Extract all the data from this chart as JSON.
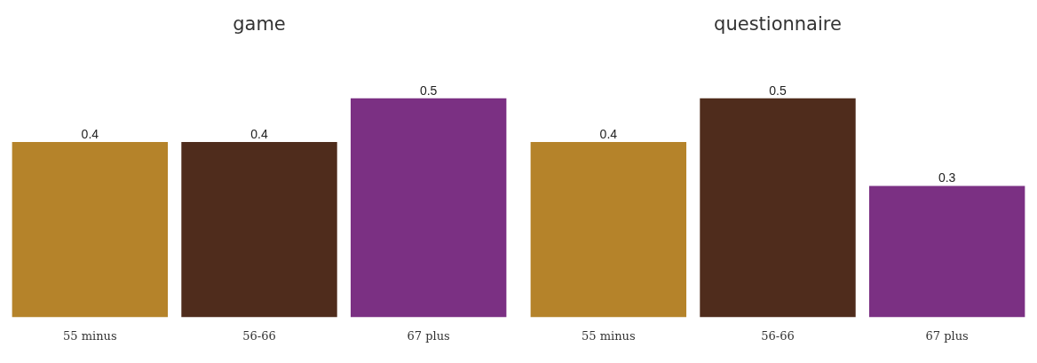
{
  "chart_data": [
    {
      "type": "bar",
      "title": "game",
      "categories": [
        "55 minus",
        "56-66",
        "67 plus"
      ],
      "values": [
        0.4,
        0.4,
        0.5
      ],
      "colors": [
        "#b5832a",
        "#4f2c1c",
        "#7b3083"
      ],
      "data_labels": true,
      "grid": false,
      "legend": false
    },
    {
      "type": "bar",
      "title": "questionnaire",
      "categories": [
        "55 minus",
        "56-66",
        "67 plus"
      ],
      "values": [
        0.4,
        0.5,
        0.3
      ],
      "colors": [
        "#b5832a",
        "#4f2c1c",
        "#7b3083"
      ],
      "data_labels": true,
      "grid": false,
      "legend": false
    }
  ]
}
